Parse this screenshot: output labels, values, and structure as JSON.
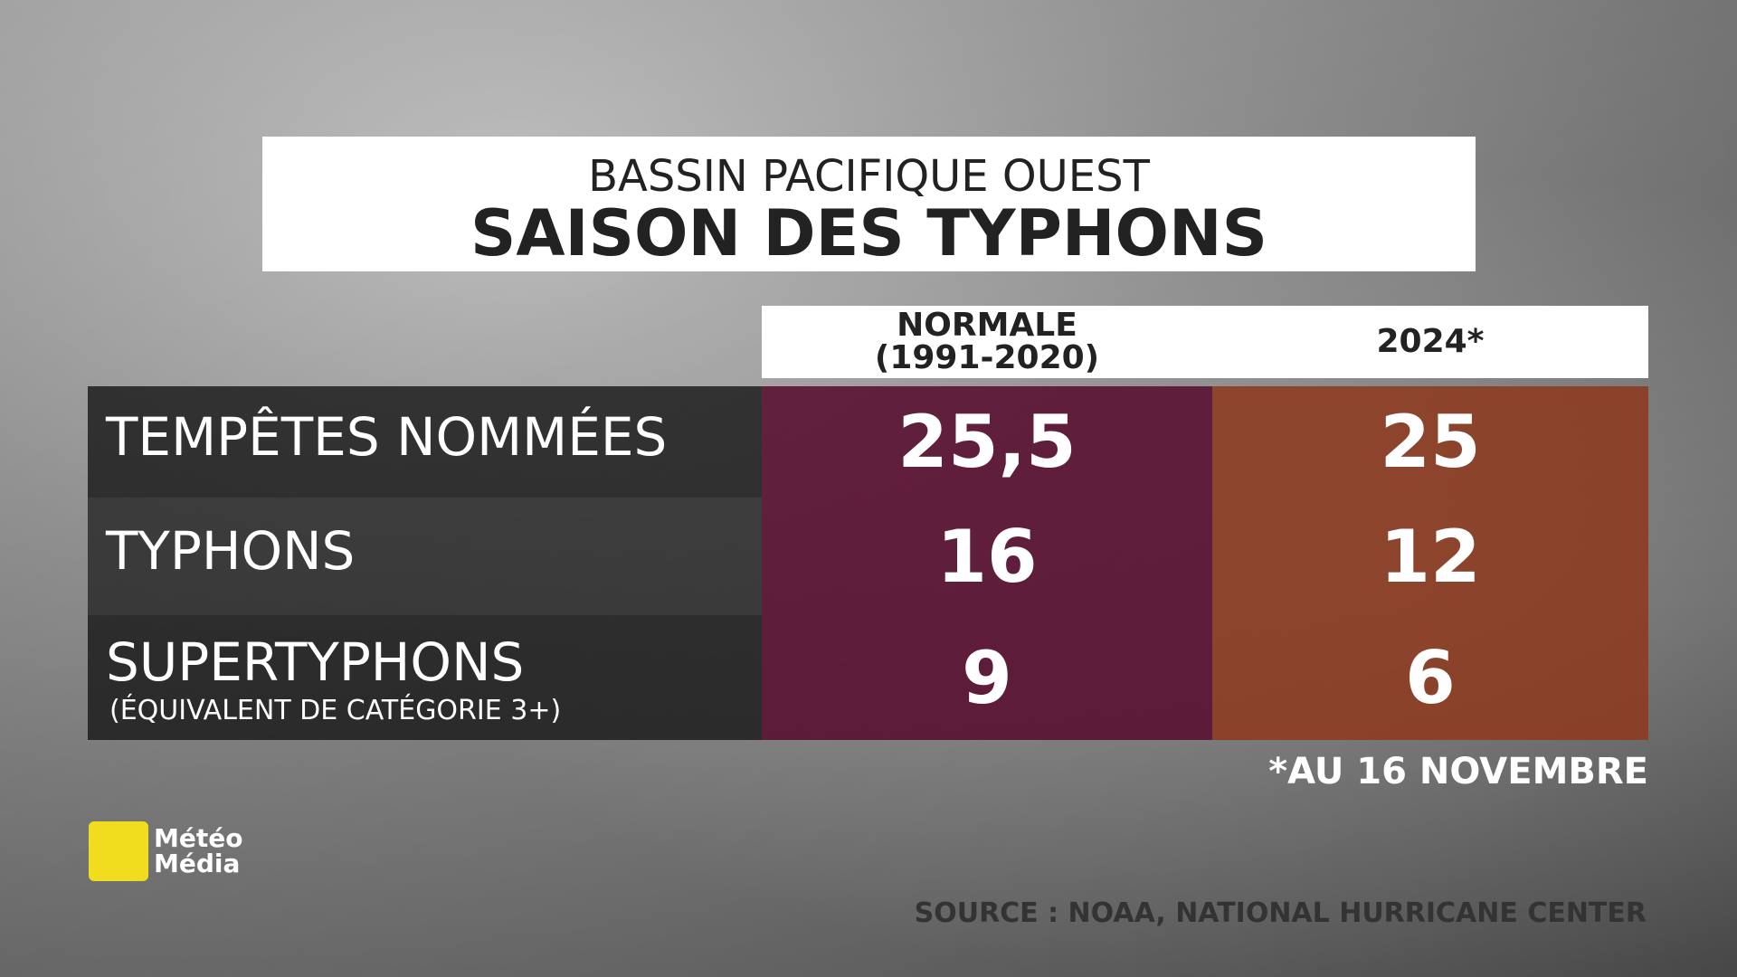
{
  "header": {
    "subtitle": "BASSIN PACIFIQUE OUEST",
    "title": "SAISON DES TYPHONS"
  },
  "table": {
    "columns": [
      {
        "label": "NORMALE",
        "sublabel": "(1991-2020)"
      },
      {
        "label": "2024*"
      }
    ],
    "rows": [
      {
        "label": "TEMPÊTES NOMMÉES",
        "values": [
          "25,5",
          "25"
        ]
      },
      {
        "label": "TYPHONS",
        "values": [
          "16",
          "12"
        ]
      },
      {
        "label": "SUPERTYPHONS",
        "note": "(ÉQUIVALENT DE CATÉGORIE 3+)",
        "values": [
          "9",
          "6"
        ]
      }
    ]
  },
  "footnote": "*AU 16 NOVEMBRE",
  "source": "SOURCE : NOAA, NATIONAL HURRICANE CENTER",
  "logo": [
    "Météo",
    "Média"
  ]
}
